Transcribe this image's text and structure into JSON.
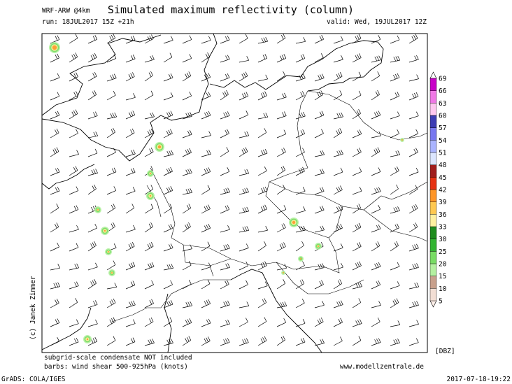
{
  "header": {
    "model": "WRF-ARW @4km",
    "title": "Simulated maximum reflectivity (column)",
    "run": "run: 18JUL2017 15Z +21h",
    "valid": "valid: Wed, 19JUL2017 12Z"
  },
  "credit": "(c) Janek Zimmer",
  "colorbar": {
    "unit": "[DBZ]",
    "levels": [
      5,
      10,
      15,
      20,
      25,
      30,
      33,
      36,
      39,
      42,
      45,
      48,
      51,
      54,
      57,
      60,
      63,
      66,
      69
    ],
    "box_colors": [
      "#f2ded4",
      "#c8a08c",
      "#b4f0a0",
      "#78dc64",
      "#32b432",
      "#1e8c1e",
      "#fff0a0",
      "#ffc850",
      "#ff9628",
      "#e63214",
      "#a01e1e",
      "#dce6ff",
      "#aab4ff",
      "#7878f0",
      "#3c3cb4",
      "#ffc8f0",
      "#f078e6",
      "#c800c8"
    ],
    "low_color": "#fff0ea",
    "high_color": "#ffffff"
  },
  "footer": {
    "note_condensate": "subgrid-scale condensate NOT included",
    "note_barbs": "barbs: wind shear 500-925hPa (knots)",
    "url": "www.modellzentrale.de",
    "software": "GrADS: COLA/IGES",
    "timestamp": "2017-07-18-19:22"
  }
}
